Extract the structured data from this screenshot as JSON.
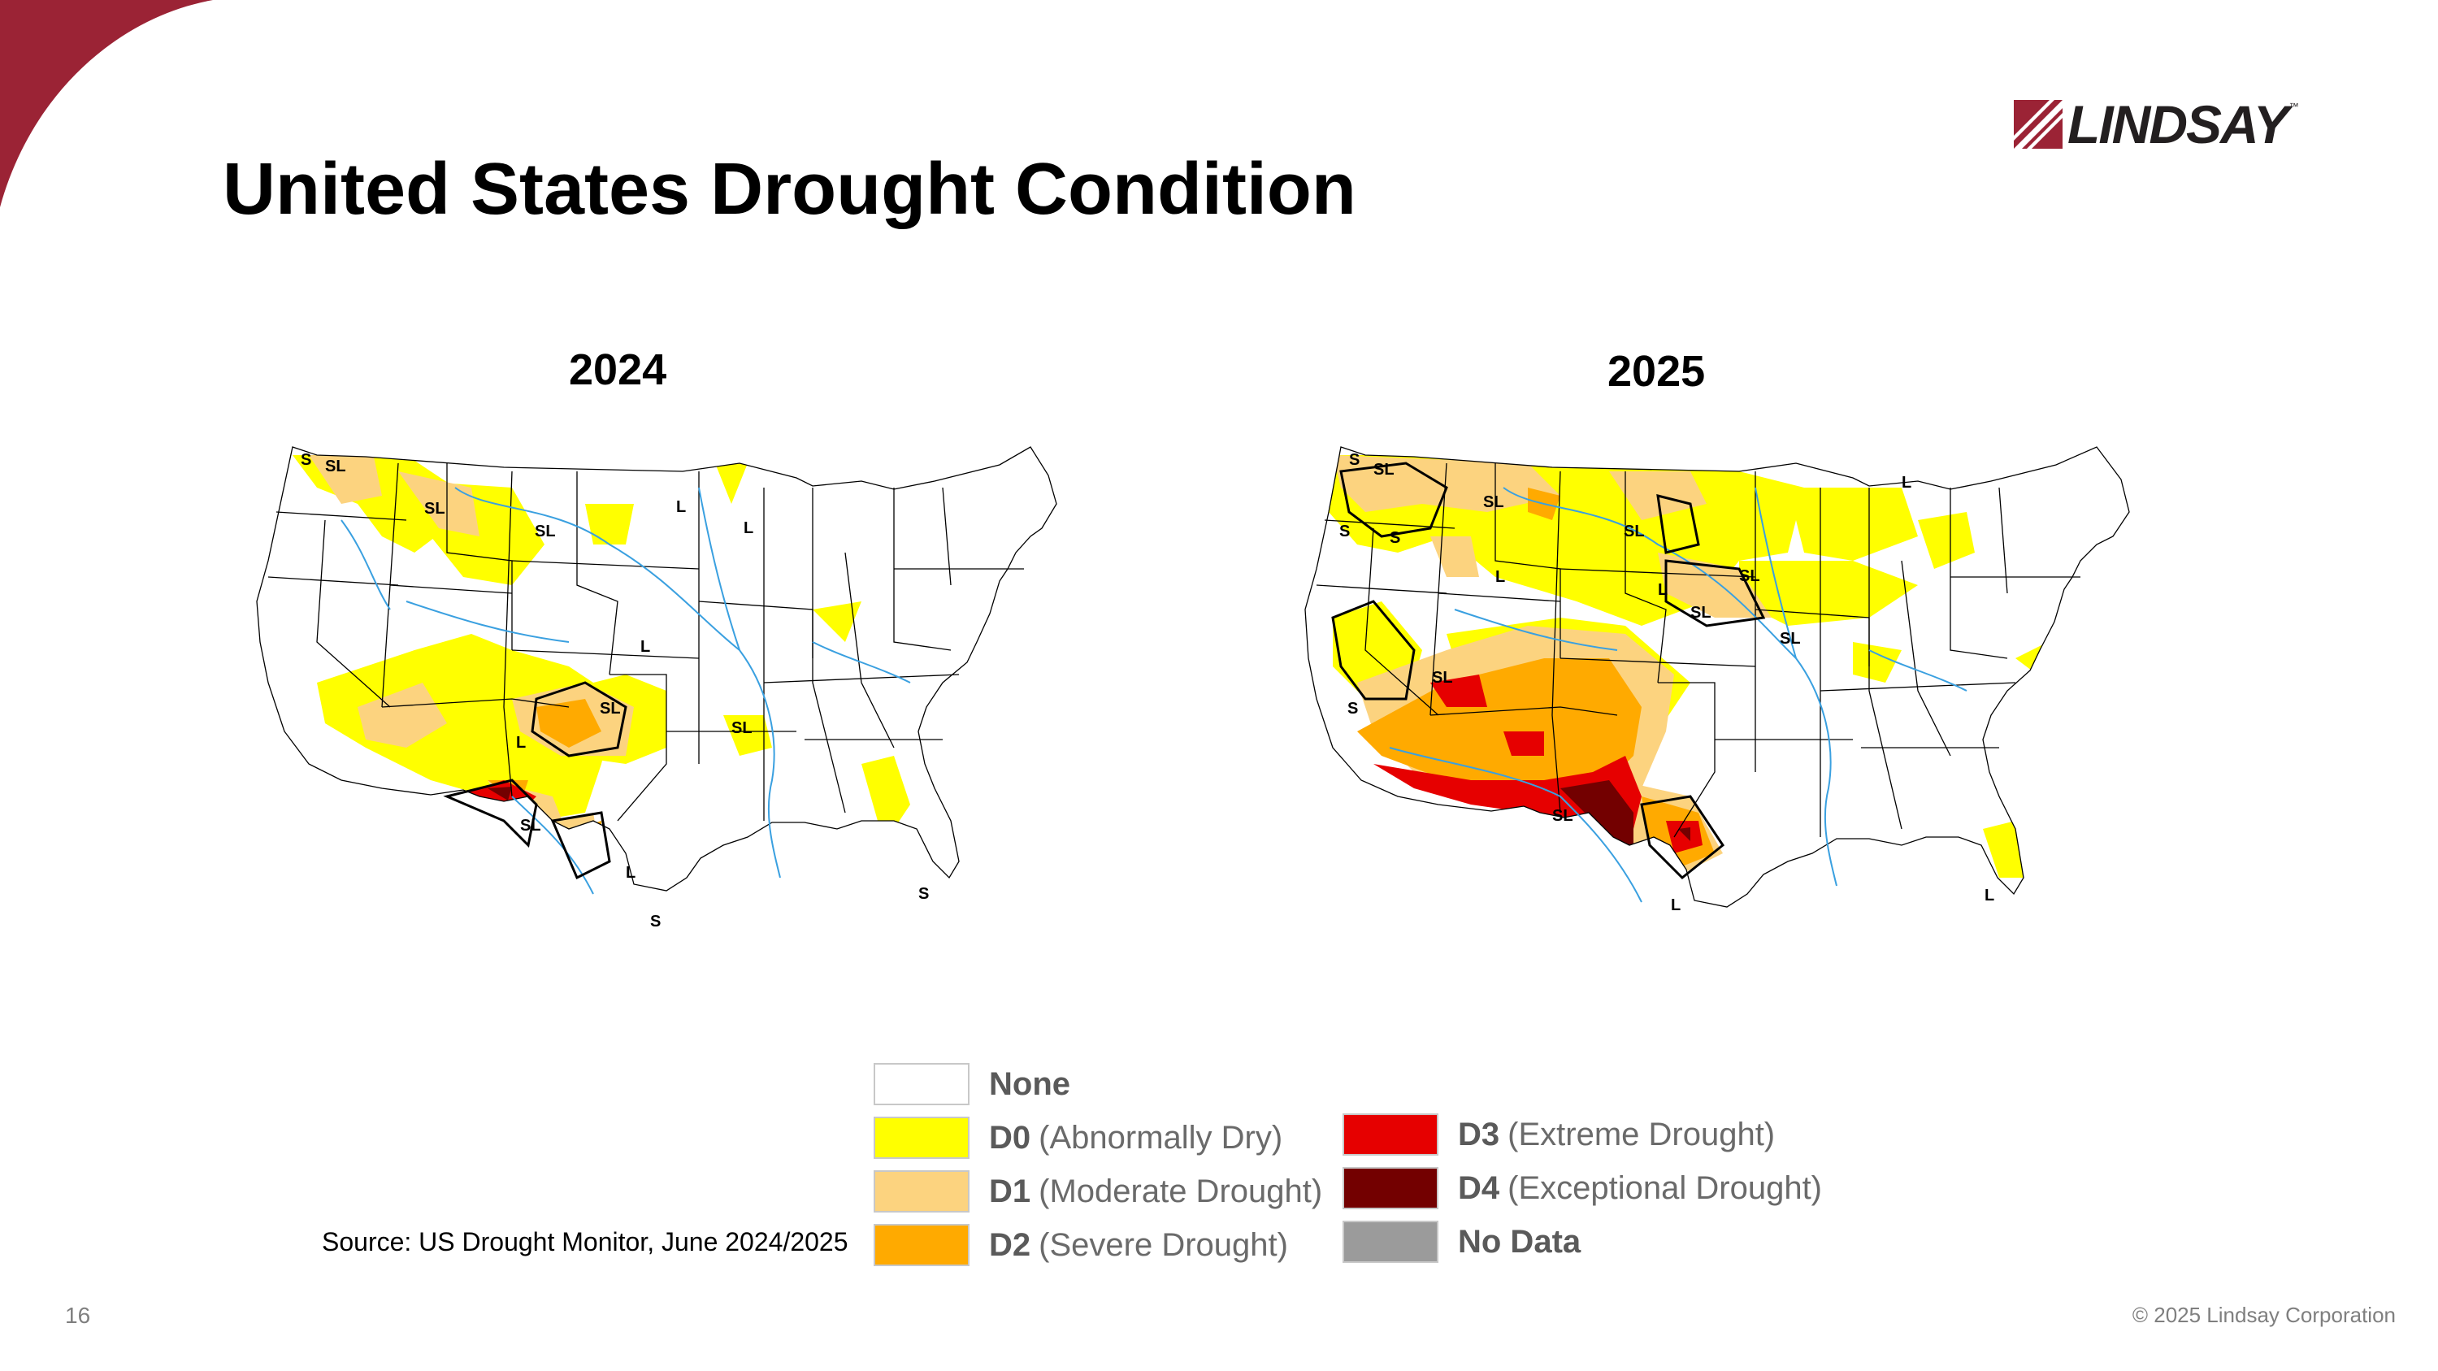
{
  "header": {
    "title": "United States Drought Condition",
    "logo_text": "LINDSAY",
    "logo_tm": "™"
  },
  "maps": [
    {
      "year": "2024",
      "zone_labels": [
        "S",
        "SL",
        "SL",
        "SL",
        "L",
        "L",
        "L",
        "SL",
        "SL",
        "L",
        "SL",
        "L",
        "S",
        "S"
      ]
    },
    {
      "year": "2025",
      "zone_labels": [
        "S",
        "SL",
        "S",
        "S",
        "SL",
        "SL",
        "L",
        "SL",
        "L",
        "SL",
        "SL",
        "S",
        "SL",
        "SL",
        "L",
        "L",
        "L"
      ]
    }
  ],
  "legend": [
    {
      "code": "None",
      "desc": "",
      "color": "#ffffff"
    },
    {
      "code": "D0",
      "desc": "(Abnormally Dry)",
      "color": "#ffff00"
    },
    {
      "code": "D1",
      "desc": "(Moderate Drought)",
      "color": "#fcd37f"
    },
    {
      "code": "D2",
      "desc": "(Severe Drought)",
      "color": "#ffaa00"
    },
    {
      "code": "D3",
      "desc": "(Extreme Drought)",
      "color": "#e60000"
    },
    {
      "code": "D4",
      "desc": "(Exceptional Drought)",
      "color": "#730000"
    },
    {
      "code": "No Data",
      "desc": "",
      "color": "#9b9b9b"
    }
  ],
  "footer": {
    "source": "Source: US Drought Monitor, June 2024/2025",
    "page_number": "16",
    "copyright": "© 2025 Lindsay Corporation"
  },
  "colors": {
    "brand": "#9b2335",
    "water": "#3aa0e0",
    "boundary": "#000000"
  }
}
